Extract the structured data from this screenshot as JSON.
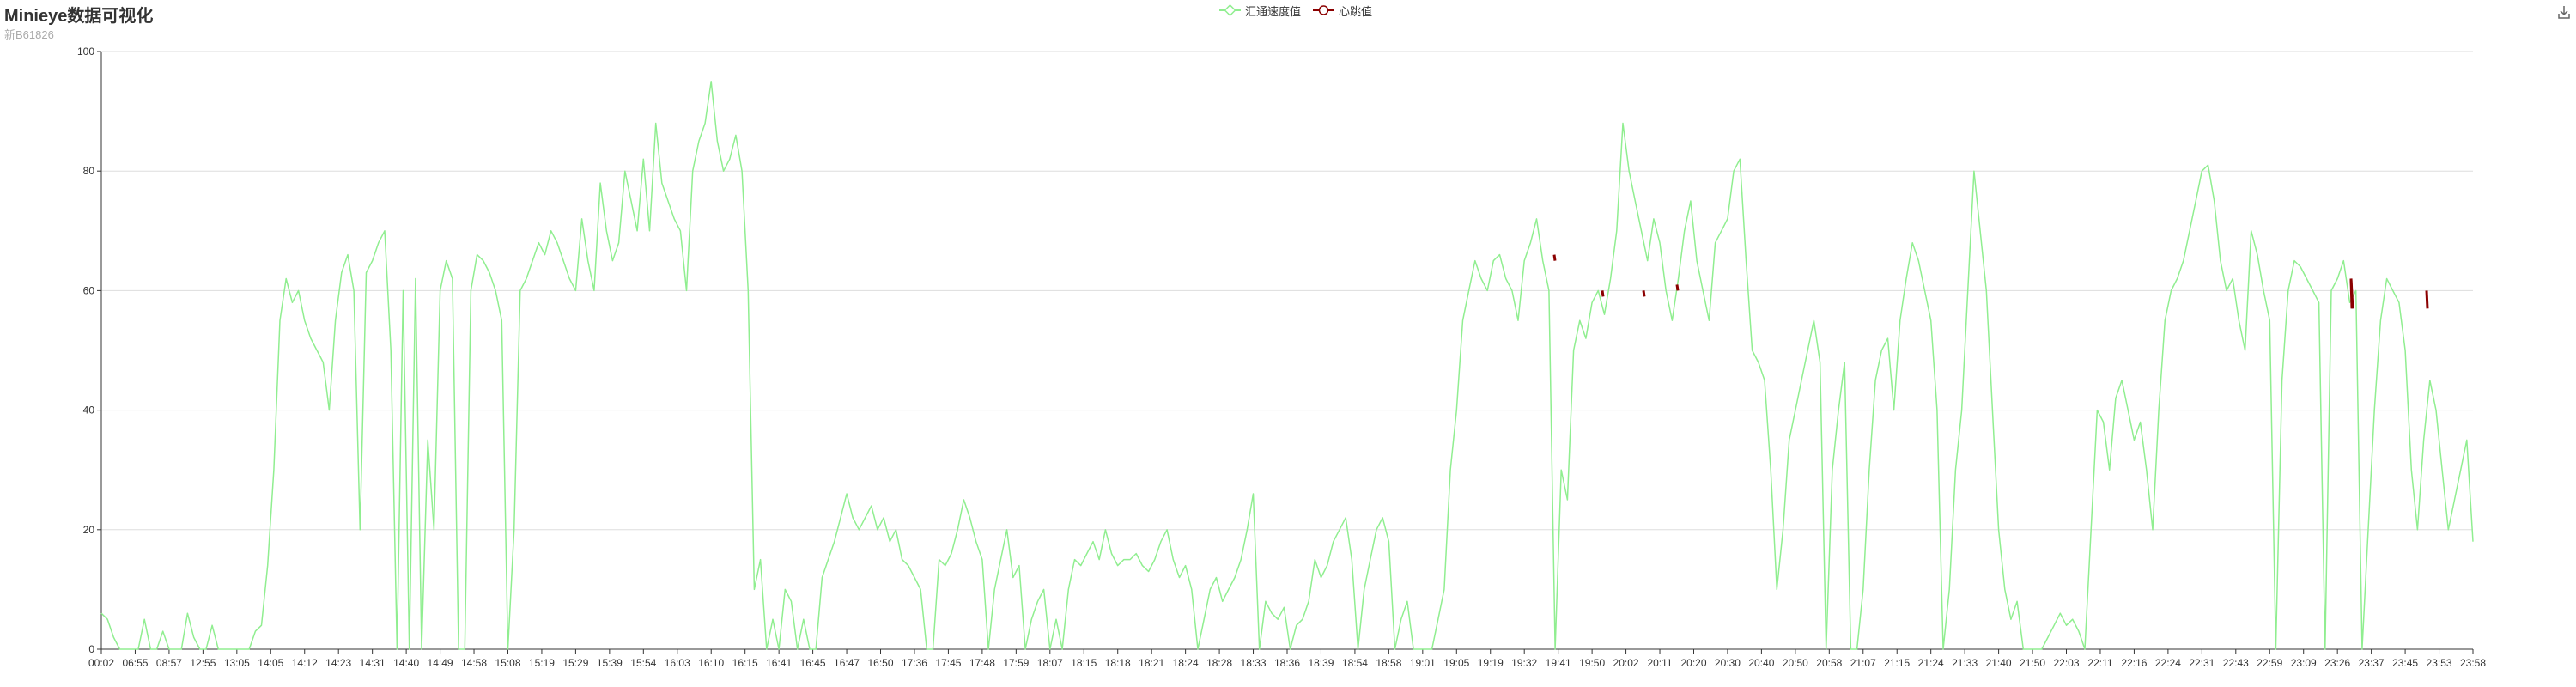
{
  "header": {
    "title": "Minieye数据可视化",
    "subtitle": "新B61826"
  },
  "toolbox": {
    "icon": "download-icon"
  },
  "colors": {
    "speed": "#90ee90",
    "heartbeat": "#8b0000",
    "grid": "#dddddd",
    "axis": "#333333"
  },
  "chart_data": {
    "type": "line",
    "title": "Minieye数据可视化",
    "subtitle": "新B61826",
    "legend": {
      "position": "top-center",
      "entries": [
        "汇通速度值",
        "心跳值"
      ]
    },
    "xlabel": "",
    "ylabel": "",
    "ylim": [
      0,
      100
    ],
    "yticks": [
      0,
      20,
      40,
      60,
      80,
      100
    ],
    "grid": true,
    "x_tick_labels": [
      "00:02",
      "06:55",
      "08:57",
      "12:55",
      "13:05",
      "14:05",
      "14:12",
      "14:23",
      "14:31",
      "14:40",
      "14:49",
      "14:58",
      "15:08",
      "15:19",
      "15:29",
      "15:39",
      "15:54",
      "16:03",
      "16:10",
      "16:15",
      "16:41",
      "16:45",
      "16:47",
      "16:50",
      "17:36",
      "17:45",
      "17:48",
      "17:59",
      "18:07",
      "18:15",
      "18:18",
      "18:21",
      "18:24",
      "18:28",
      "18:33",
      "18:36",
      "18:39",
      "18:54",
      "18:58",
      "19:01",
      "19:05",
      "19:19",
      "19:32",
      "19:41",
      "19:50",
      "20:02",
      "20:11",
      "20:20",
      "20:30",
      "20:40",
      "20:50",
      "20:58",
      "21:07",
      "21:15",
      "21:24",
      "21:33",
      "21:40",
      "21:50",
      "22:03",
      "22:11",
      "22:16",
      "22:24",
      "22:31",
      "22:43",
      "22:59",
      "23:09",
      "23:26",
      "23:37",
      "23:45",
      "23:53",
      "23:58"
    ],
    "series": [
      {
        "name": "汇通速度值",
        "color": "#90ee90",
        "values": [
          6,
          5,
          2,
          0,
          0,
          0,
          0,
          5,
          0,
          0,
          3,
          0,
          0,
          0,
          6,
          2,
          0,
          0,
          4,
          0,
          0,
          0,
          0,
          0,
          0,
          3,
          4,
          14,
          30,
          55,
          62,
          58,
          60,
          55,
          52,
          50,
          48,
          40,
          55,
          63,
          66,
          60,
          20,
          63,
          65,
          68,
          70,
          50,
          0,
          60,
          0,
          62,
          0,
          35,
          20,
          60,
          65,
          62,
          0,
          0,
          60,
          66,
          65,
          63,
          60,
          55,
          0,
          20,
          60,
          62,
          65,
          68,
          66,
          70,
          68,
          65,
          62,
          60,
          72,
          65,
          60,
          78,
          70,
          65,
          68,
          80,
          75,
          70,
          82,
          70,
          88,
          78,
          75,
          72,
          70,
          60,
          80,
          85,
          88,
          95,
          85,
          80,
          82,
          86,
          80,
          60,
          10,
          15,
          0,
          5,
          0,
          10,
          8,
          0,
          5,
          0,
          0,
          12,
          15,
          18,
          22,
          26,
          22,
          20,
          22,
          24,
          20,
          22,
          18,
          20,
          15,
          14,
          12,
          10,
          0,
          0,
          15,
          14,
          16,
          20,
          25,
          22,
          18,
          15,
          0,
          10,
          15,
          20,
          12,
          14,
          0,
          5,
          8,
          10,
          0,
          5,
          0,
          10,
          15,
          14,
          16,
          18,
          15,
          20,
          16,
          14,
          15,
          15,
          16,
          14,
          13,
          15,
          18,
          20,
          15,
          12,
          14,
          10,
          0,
          5,
          10,
          12,
          8,
          10,
          12,
          15,
          20,
          26,
          0,
          8,
          6,
          5,
          7,
          0,
          4,
          5,
          8,
          15,
          12,
          14,
          18,
          20,
          22,
          15,
          0,
          10,
          15,
          20,
          22,
          18,
          0,
          5,
          8,
          0,
          0,
          0,
          0,
          5,
          10,
          30,
          40,
          55,
          60,
          65,
          62,
          60,
          65,
          66,
          62,
          60,
          55,
          65,
          68,
          72,
          65,
          60,
          0,
          30,
          25,
          50,
          55,
          52,
          58,
          60,
          56,
          62,
          70,
          88,
          80,
          75,
          70,
          65,
          72,
          68,
          60,
          55,
          62,
          70,
          75,
          65,
          60,
          55,
          68,
          70,
          72,
          80,
          82,
          65,
          50,
          48,
          45,
          30,
          10,
          20,
          35,
          40,
          45,
          50,
          55,
          48,
          0,
          30,
          40,
          48,
          0,
          0,
          10,
          30,
          45,
          50,
          52,
          40,
          55,
          62,
          68,
          65,
          60,
          55,
          40,
          0,
          10,
          30,
          40,
          60,
          80,
          70,
          60,
          40,
          20,
          10,
          5,
          8,
          0,
          0,
          0,
          0,
          2,
          4,
          6,
          4,
          5,
          3,
          0,
          20,
          40,
          38,
          30,
          42,
          45,
          40,
          35,
          38,
          30,
          20,
          40,
          55,
          60,
          62,
          65,
          70,
          75,
          80,
          81,
          75,
          65,
          60,
          62,
          55,
          50,
          70,
          66,
          60,
          55,
          0,
          45,
          60,
          65,
          64,
          62,
          60,
          58,
          0,
          60,
          62,
          65,
          58,
          60,
          0,
          20,
          40,
          55,
          62,
          60,
          58,
          50,
          30,
          20,
          35,
          45,
          40,
          30,
          20,
          25,
          30,
          35,
          18
        ]
      },
      {
        "name": "心跳值",
        "color": "#8b0000",
        "points": [
          [
            1810,
            66
          ],
          [
            1811,
            65
          ],
          [
            1866,
            60
          ],
          [
            1867,
            59
          ],
          [
            1914,
            60
          ],
          [
            1915,
            59
          ],
          [
            1953,
            61
          ],
          [
            1954,
            60
          ],
          [
            2738,
            62
          ],
          [
            2739,
            57
          ],
          [
            2740,
            60
          ],
          [
            2807,
            58
          ],
          [
            2808,
            56
          ],
          [
            2826,
            60
          ],
          [
            2827,
            57
          ]
        ]
      }
    ]
  }
}
